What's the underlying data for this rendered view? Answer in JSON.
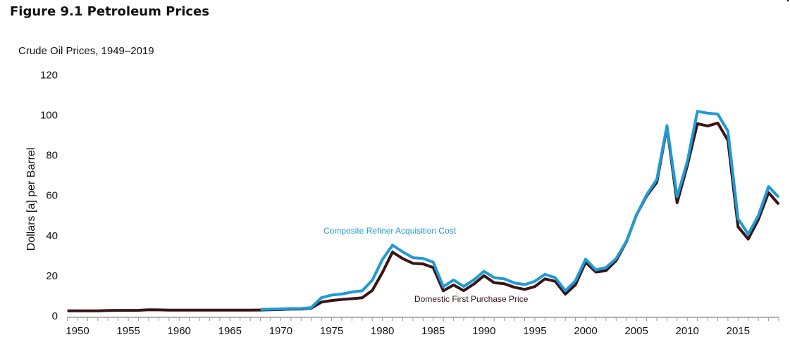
{
  "figure": {
    "title": "Figure 9.1  Petroleum Prices"
  },
  "chart_data": {
    "type": "line",
    "title": "Crude Oil Prices, 1949–2019",
    "xlabel": "",
    "ylabel": "Dollars [a]  per Barrel",
    "xlim": [
      1949,
      2019
    ],
    "ylim": [
      0,
      120
    ],
    "yticks": [
      0,
      20,
      40,
      60,
      80,
      100,
      120
    ],
    "xticks": [
      1950,
      1955,
      1960,
      1965,
      1970,
      1975,
      1980,
      1985,
      1990,
      1995,
      2000,
      2005,
      2010,
      2015
    ],
    "grid": false,
    "series": [
      {
        "name": "Domestic First Purchase Price",
        "color": "#3a1416",
        "label_position": "below",
        "x_start": 1949,
        "values": [
          2.54,
          2.51,
          2.53,
          2.53,
          2.68,
          2.78,
          2.77,
          2.79,
          3.09,
          3.01,
          2.9,
          2.88,
          2.89,
          2.9,
          2.89,
          2.88,
          2.86,
          2.88,
          2.92,
          2.94,
          3.09,
          3.18,
          3.39,
          3.39,
          3.89,
          6.87,
          7.67,
          8.19,
          8.57,
          9.0,
          12.64,
          21.59,
          31.77,
          28.52,
          26.19,
          25.88,
          24.09,
          12.51,
          15.4,
          12.58,
          15.86,
          20.03,
          16.54,
          15.99,
          14.25,
          13.19,
          14.62,
          18.46,
          17.23,
          10.87,
          15.56,
          26.72,
          21.84,
          22.51,
          27.56,
          36.77,
          50.28,
          59.69,
          66.52,
          94.04,
          56.35,
          74.71,
          95.73,
          94.52,
          95.99,
          87.39,
          44.39,
          38.29,
          48.05,
          61.4,
          55.59
        ]
      },
      {
        "name": "Composite Refiner Acquisition Cost",
        "color": "#1f9ad6",
        "label_position": "above",
        "x_start": 1968,
        "values": [
          3.21,
          3.37,
          3.46,
          3.68,
          3.67,
          4.17,
          9.07,
          10.38,
          10.89,
          11.96,
          12.46,
          17.72,
          28.07,
          35.24,
          31.87,
          28.99,
          28.63,
          26.75,
          14.55,
          17.9,
          14.67,
          17.97,
          22.22,
          19.06,
          18.43,
          16.41,
          15.59,
          17.23,
          20.71,
          19.04,
          12.52,
          17.51,
          28.26,
          22.95,
          24.1,
          28.53,
          36.98,
          50.24,
          60.24,
          67.94,
          94.74,
          59.29,
          76.69,
          101.87,
          100.93,
          100.49,
          92.02,
          48.4,
          40.68,
          50.01,
          64.43,
          59.04
        ]
      }
    ]
  }
}
